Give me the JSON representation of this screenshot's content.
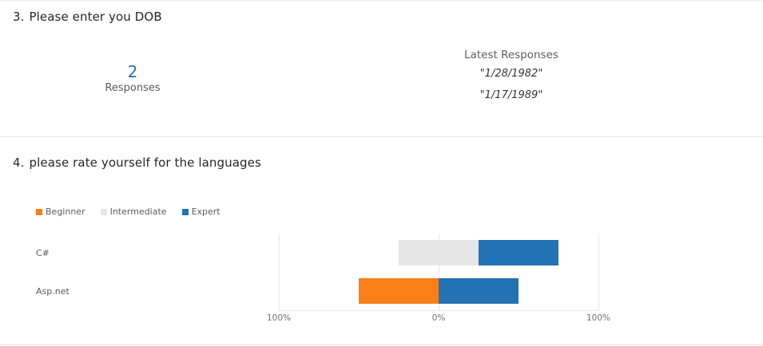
{
  "question3": {
    "number": "3.",
    "title": "Please enter you DOB",
    "response_count": "2",
    "response_label": "Responses",
    "latest_title": "Latest Responses",
    "latest_responses": [
      "\"1/28/1982\"",
      "\"1/17/1989\""
    ]
  },
  "question4": {
    "number": "4.",
    "title": "please rate yourself for the languages"
  },
  "chart_data": {
    "type": "bar",
    "orientation": "horizontal",
    "stacked": "diverging",
    "categories": [
      "C#",
      "Asp.net"
    ],
    "series": [
      {
        "name": "Beginner",
        "color": "#fa7f17",
        "values": [
          0,
          50
        ]
      },
      {
        "name": "Intermediate",
        "color": "#e6e6e6",
        "values": [
          50,
          0
        ]
      },
      {
        "name": "Expert",
        "color": "#2372b5",
        "values": [
          50,
          50
        ]
      }
    ],
    "xlim": [
      -100,
      100
    ],
    "x_ticks": [
      -100,
      0,
      100
    ],
    "x_tick_labels": [
      "100%",
      "0%",
      "100%"
    ],
    "legend_position": "top-left",
    "grid": true
  }
}
